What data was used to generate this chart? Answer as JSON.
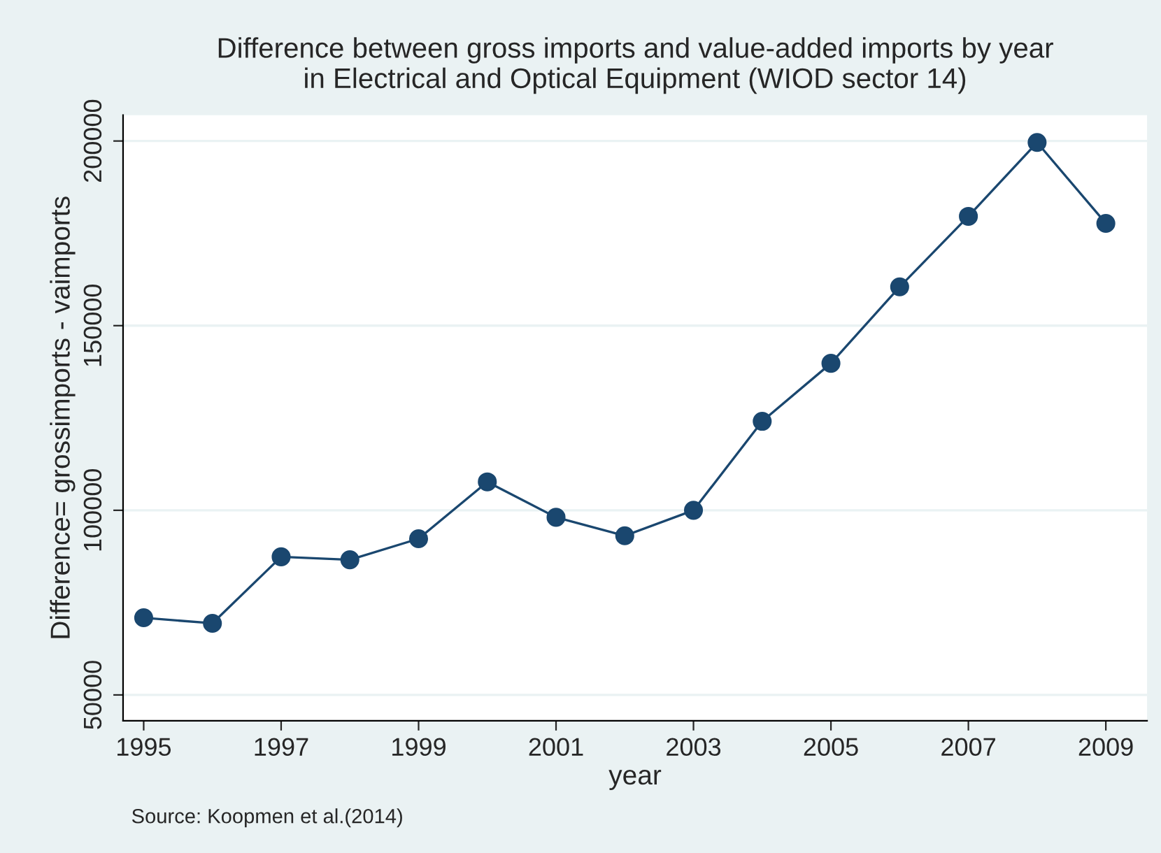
{
  "chart_data": {
    "type": "line",
    "title": "Difference between gross imports and value-added imports by year\nin Electrical and Optical Equipment (WIOD sector 14)",
    "xlabel": "year",
    "ylabel": "Difference= grossimports - vaimports",
    "x": [
      1995,
      1996,
      1997,
      1998,
      1999,
      2000,
      2001,
      2002,
      2003,
      2004,
      2005,
      2006,
      2007,
      2008,
      2009
    ],
    "series": [
      {
        "color": "#1a476f",
        "values": [
          70900,
          69400,
          87400,
          86600,
          92300,
          107700,
          98100,
          93100,
          100000,
          124100,
          139800,
          160500,
          179600,
          199600,
          177700
        ]
      }
    ],
    "xlim": [
      1994.7,
      2009.6
    ],
    "xticks": [
      1995,
      1997,
      1999,
      2001,
      2003,
      2005,
      2007,
      2009
    ],
    "ylim": [
      43000,
      207000
    ],
    "yticks": [
      50000,
      100000,
      150000,
      200000
    ],
    "grid": "y",
    "marker": "circle",
    "line_style": "solid",
    "legend": false,
    "annotations": [
      "Source: Koopmen et al.(2014)"
    ]
  }
}
